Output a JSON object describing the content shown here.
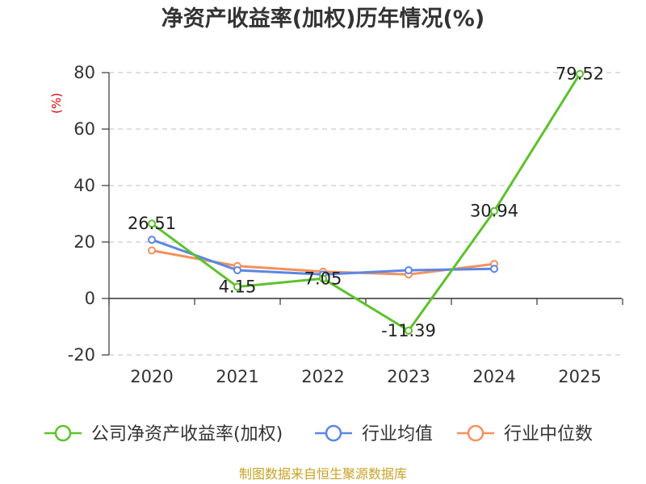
{
  "chart_data": {
    "type": "line",
    "title": "净资产收益率(加权)历年情况(%)",
    "ylabel": "(%)",
    "categories": [
      "2020",
      "2021",
      "2022",
      "2023",
      "2024",
      "2025"
    ],
    "ylim": [
      -20,
      80
    ],
    "yticks": [
      -20,
      0,
      20,
      40,
      60,
      80
    ],
    "grid": true,
    "legend_position": "bottom",
    "series": [
      {
        "name": "公司净资产收益率(加权)",
        "color": "#5cc22b",
        "values": [
          26.51,
          4.15,
          7.05,
          -11.39,
          30.94,
          79.52
        ],
        "labels": [
          "26.51",
          "4.15",
          "7.05",
          "-11.39",
          "30.94",
          "79.52"
        ]
      },
      {
        "name": "行业均值",
        "color": "#5b86e5",
        "values": [
          20.8,
          10.0,
          8.5,
          10.0,
          10.5,
          null
        ]
      },
      {
        "name": "行业中位数",
        "color": "#f5915c",
        "values": [
          17.0,
          11.5,
          9.5,
          8.5,
          12.2,
          null
        ]
      }
    ]
  },
  "footer": {
    "source": "制图数据来自恒生聚源数据库"
  }
}
